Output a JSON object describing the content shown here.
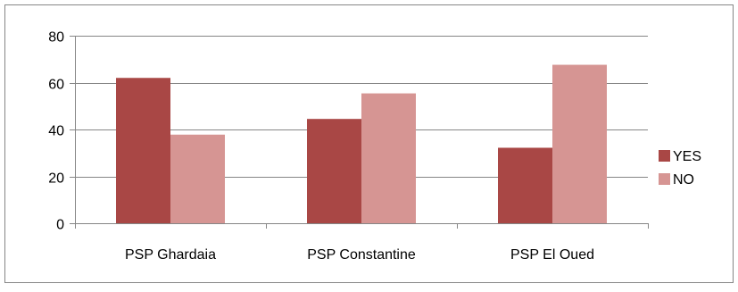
{
  "chart_data": {
    "type": "bar",
    "categories": [
      "PSP Ghardaia",
      "PSP Constantine",
      "PSP El Oued"
    ],
    "series": [
      {
        "name": "YES",
        "values": [
          62,
          44.5,
          32.2
        ],
        "color": "#a94745"
      },
      {
        "name": "NO",
        "values": [
          37.8,
          55.4,
          67.6
        ],
        "color": "#d69593"
      }
    ],
    "ylim": [
      0,
      80
    ],
    "yticks": [
      0,
      20,
      40,
      60,
      80
    ],
    "grid": true,
    "legend": "right",
    "title": "",
    "xlabel": "",
    "ylabel": ""
  }
}
